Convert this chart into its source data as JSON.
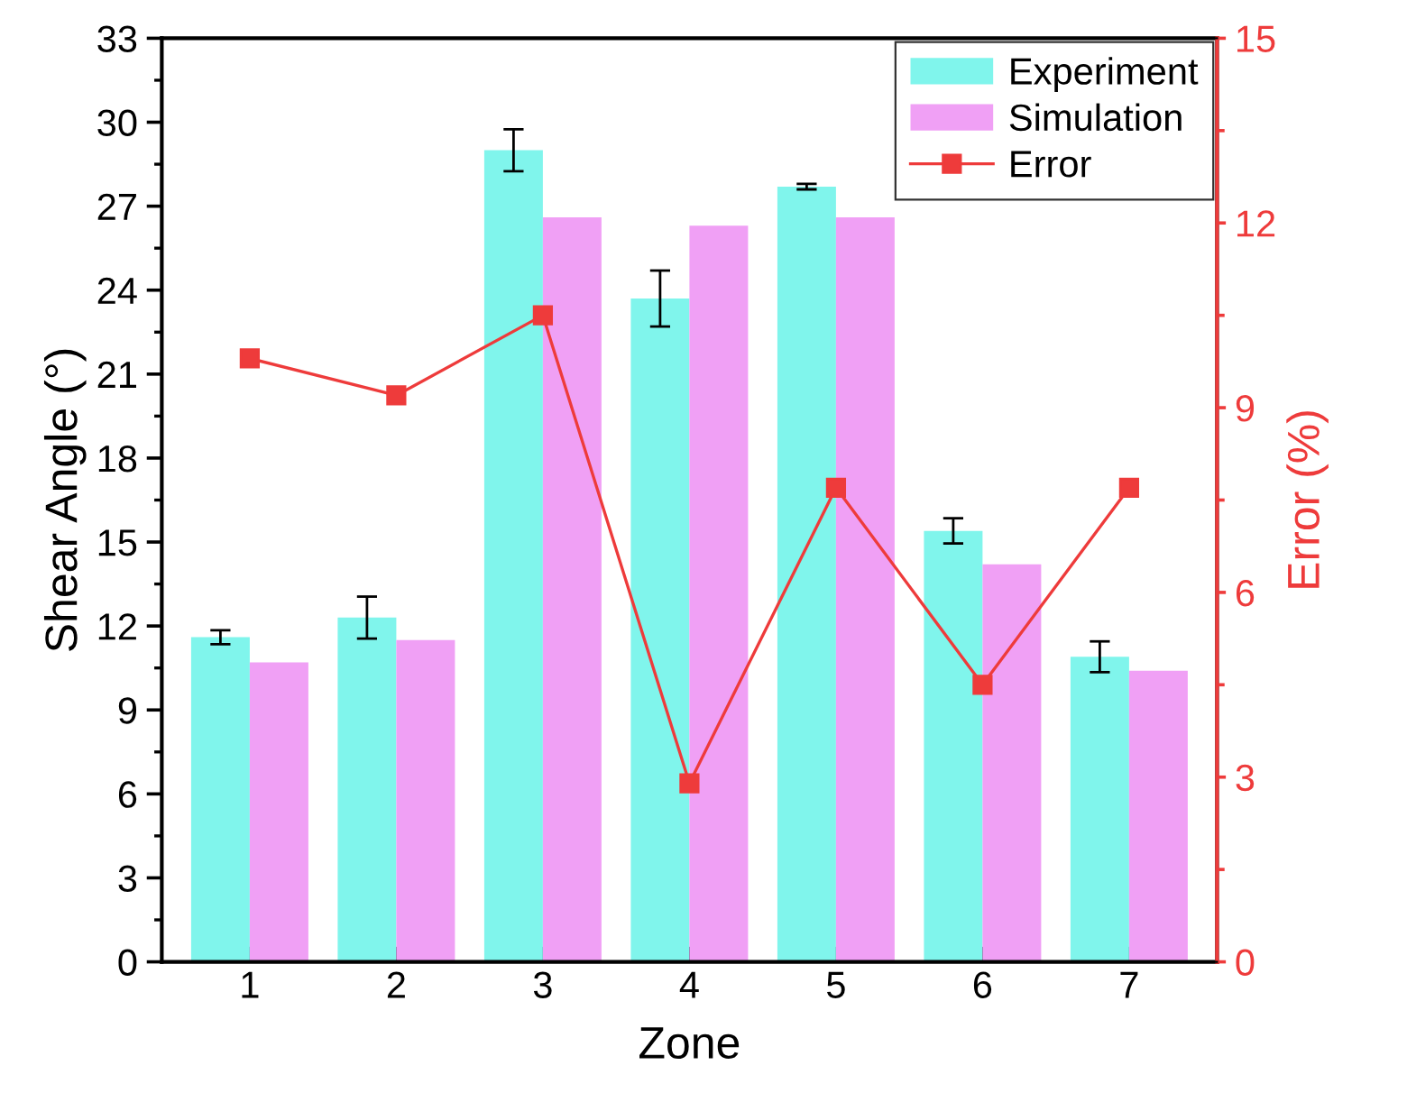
{
  "chart_data": {
    "type": "bar",
    "xlabel": "Zone",
    "ylabel": "Shear Angle (°)",
    "y2label": "Error (%)",
    "categories": [
      "1",
      "2",
      "3",
      "4",
      "5",
      "6",
      "7"
    ],
    "series": [
      {
        "name": "Experiment",
        "color": "#80f5ec",
        "values": [
          11.6,
          12.3,
          29.0,
          23.7,
          27.7,
          15.4,
          10.9
        ],
        "errors": [
          0.25,
          0.75,
          0.75,
          1.0,
          0.1,
          0.45,
          0.55
        ]
      },
      {
        "name": "Simulation",
        "color": "#f0a0f5",
        "values": [
          10.7,
          11.5,
          26.6,
          26.3,
          26.6,
          14.2,
          10.4
        ]
      },
      {
        "name": "Error",
        "type": "line",
        "axis": "y2",
        "color": "#ee3b3b",
        "marker": "square",
        "values": [
          9.8,
          9.2,
          10.5,
          2.9,
          7.7,
          4.5,
          7.7
        ]
      }
    ],
    "ylim": [
      0,
      33
    ],
    "yticks": [
      0,
      3,
      6,
      9,
      12,
      15,
      18,
      21,
      24,
      27,
      30,
      33
    ],
    "y2lim": [
      0,
      15
    ],
    "y2ticks": [
      0,
      3,
      6,
      9,
      12,
      15
    ],
    "legend": "top right",
    "grid": false
  }
}
